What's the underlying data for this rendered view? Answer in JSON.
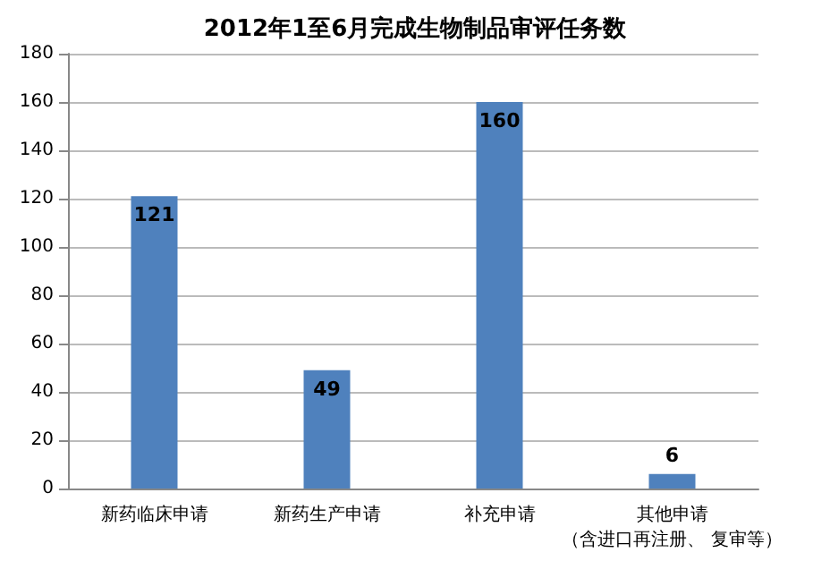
{
  "chart_data": {
    "type": "bar",
    "title": "2012年1至6月完成生物制品审评任务数",
    "categories": [
      "新药临床申请",
      "新药生产申请",
      "补充申请",
      "其他申请（含进口再注册、 复审等）"
    ],
    "values": [
      121,
      49,
      160,
      6
    ],
    "color": "#4f81bd",
    "ylim": [
      0,
      180
    ],
    "yticks": [
      0,
      20,
      40,
      60,
      80,
      100,
      120,
      140,
      160,
      180
    ],
    "grid": "y",
    "data_labels": true
  }
}
